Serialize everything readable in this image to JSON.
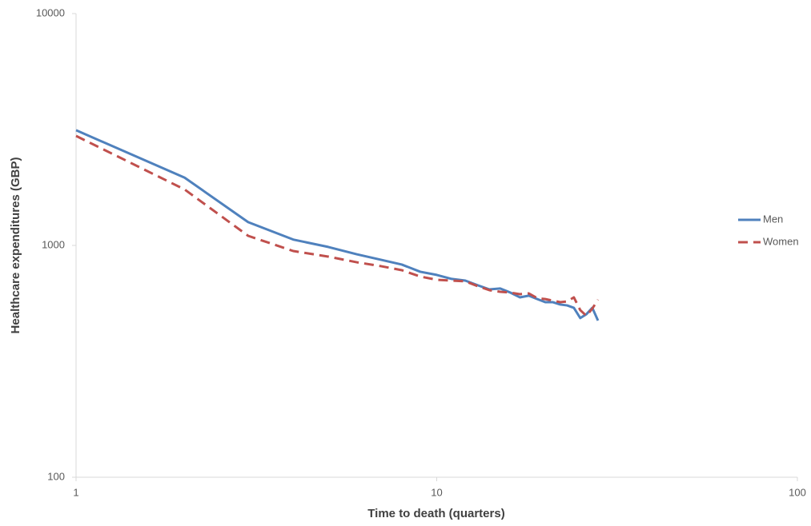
{
  "chart_data": {
    "type": "line",
    "x_label": "Time to death (quarters)",
    "y_label": "Healthcare expenditures (GBP)",
    "x": [
      1,
      2,
      3,
      4,
      5,
      6,
      7,
      8,
      9,
      10,
      11,
      12,
      13,
      14,
      15,
      16,
      17,
      18,
      19,
      20,
      21,
      22,
      23,
      24,
      25,
      26,
      27,
      28
    ],
    "series": [
      {
        "name": "Men",
        "color": "#4f81bd",
        "dash": false,
        "values": [
          3140,
          1960,
          1260,
          1060,
          985,
          916,
          867,
          827,
          770,
          746,
          717,
          705,
          673,
          646,
          652,
          626,
          597,
          607,
          587,
          569,
          569,
          556,
          551,
          538,
          486,
          505,
          538,
          474
        ]
      },
      {
        "name": "Women",
        "color": "#c0504d",
        "dash": true,
        "values": [
          2967,
          1743,
          1100,
          946,
          895,
          846,
          814,
          782,
          734,
          711,
          705,
          700,
          667,
          641,
          631,
          626,
          616,
          621,
          592,
          587,
          578,
          569,
          573,
          597,
          526,
          497,
          534,
          583
        ]
      }
    ],
    "xlim": [
      1,
      100
    ],
    "ylim": [
      100,
      10000
    ],
    "xticks": [
      1,
      10,
      100
    ],
    "yticks": [
      100,
      1000,
      10000
    ],
    "xlog": true,
    "ylog": true,
    "grid": false,
    "legend": "right"
  }
}
